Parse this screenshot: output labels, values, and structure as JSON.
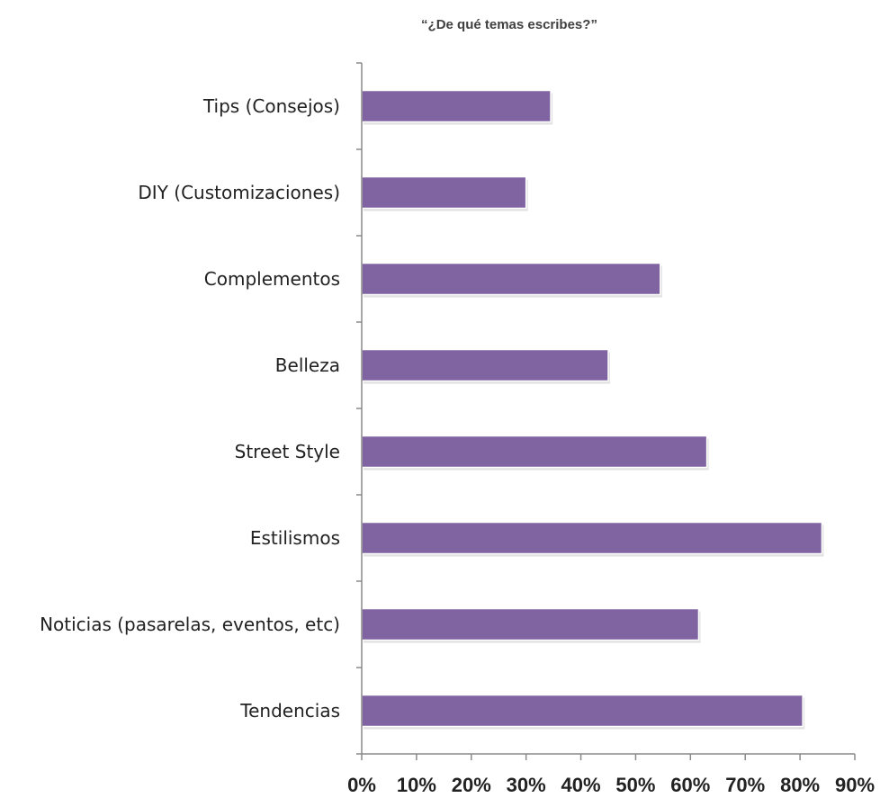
{
  "chart_data": {
    "type": "bar",
    "orientation": "horizontal",
    "title": "“¿De qué temas escribes?”",
    "xlabel": "",
    "ylabel": "",
    "xlim": [
      0,
      0.9
    ],
    "grid": false,
    "legend": "none",
    "colors": {
      "bar": "#8064A2",
      "bar_edge": "#ffffff",
      "axis": "#8a8a8a",
      "text": "#222222"
    },
    "tick_labels": [
      "0%",
      "10%",
      "20%",
      "30%",
      "40%",
      "50%",
      "60%",
      "70%",
      "80%",
      "90%"
    ],
    "tick_values": [
      0,
      0.1,
      0.2,
      0.3,
      0.4,
      0.5,
      0.6,
      0.7,
      0.8,
      0.9
    ],
    "categories": [
      "Tips (Consejos)",
      "DIY (Customizaciones)",
      "Complementos",
      "Belleza",
      "Street Style",
      "Estilismos",
      "Noticias (pasarelas, eventos, etc)",
      "Tendencias"
    ],
    "values": [
      0.345,
      0.3,
      0.545,
      0.45,
      0.63,
      0.84,
      0.615,
      0.805
    ]
  }
}
